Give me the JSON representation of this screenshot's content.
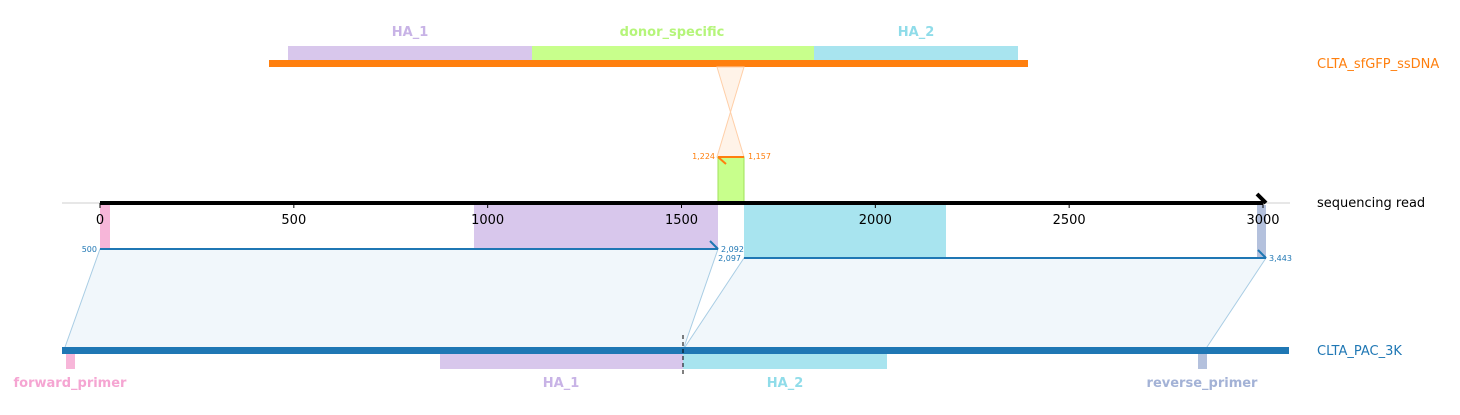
{
  "tracks": {
    "donor": {
      "label": "CLTA_sfGFP_ssDNA",
      "color": "#ff7f0e"
    },
    "read": {
      "label": "sequencing read",
      "color": "#000000"
    },
    "target": {
      "label": "CLTA_PAC_3K",
      "color": "#1f77b4"
    }
  },
  "donor_features": [
    {
      "label": "HA_1",
      "color": "#d8c7ec"
    },
    {
      "label": "donor_specific",
      "color": "#c8ff8c"
    },
    {
      "label": "HA_2",
      "color": "#a8e4ef"
    }
  ],
  "target_features": [
    {
      "label": "forward_primer",
      "color": "#f7b6d9"
    },
    {
      "label": "HA_1",
      "color": "#d8c7ec"
    },
    {
      "label": "HA_2",
      "color": "#a8e4ef"
    },
    {
      "label": "reverse_primer",
      "color": "#b4c1dd"
    }
  ],
  "read_axis": {
    "ticks": [
      "0",
      "500",
      "1000",
      "1500",
      "2000",
      "2500",
      "3000"
    ]
  },
  "alignments": {
    "donor": {
      "read_start": 1224,
      "read_end": 1157,
      "color": "#ff7f0e"
    },
    "target_left": {
      "read_start": 500,
      "read_end": 2092,
      "color": "#1f77b4"
    },
    "target_right": {
      "read_start": 2097,
      "read_end": 3443,
      "color": "#1f77b4"
    }
  },
  "colors": {
    "primer_pink": "#f7b6d9",
    "ha1_purple": "#d8c7ec",
    "donor_green": "#c8ff8c",
    "ha2_cyan": "#a8e4ef",
    "primer_blue": "#b4c1dd",
    "donor_orange": "#ff7f0e",
    "target_blue": "#1f77b4"
  }
}
